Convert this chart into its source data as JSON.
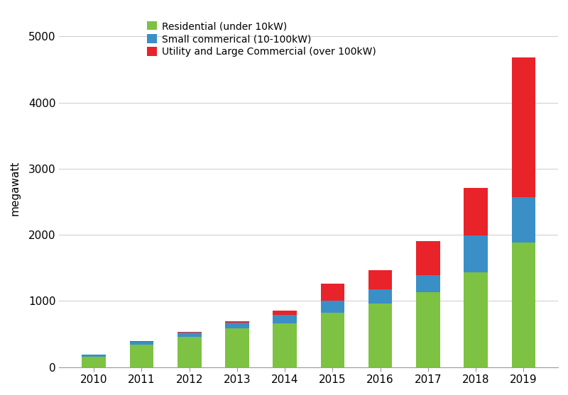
{
  "years": [
    2010,
    2011,
    2012,
    2013,
    2014,
    2015,
    2016,
    2017,
    2018,
    2019
  ],
  "residential": [
    155,
    335,
    455,
    590,
    665,
    820,
    960,
    1130,
    1430,
    1880
  ],
  "small_commercial": [
    30,
    50,
    65,
    80,
    130,
    185,
    215,
    265,
    560,
    685
  ],
  "utility": [
    10,
    10,
    15,
    20,
    55,
    255,
    290,
    510,
    720,
    2120
  ],
  "colors": {
    "residential": "#7dc242",
    "small_commercial": "#3a8fc7",
    "utility": "#e8232a"
  },
  "legend_labels": [
    "Residential (under 10kW)",
    "Small commerical (10-100kW)",
    "Utility and Large Commercial (over 100kW)"
  ],
  "ylabel": "megawatt",
  "ylim": [
    0,
    5400
  ],
  "yticks": [
    0,
    1000,
    2000,
    3000,
    4000,
    5000
  ],
  "background_color": "#ffffff",
  "bar_width": 0.5
}
